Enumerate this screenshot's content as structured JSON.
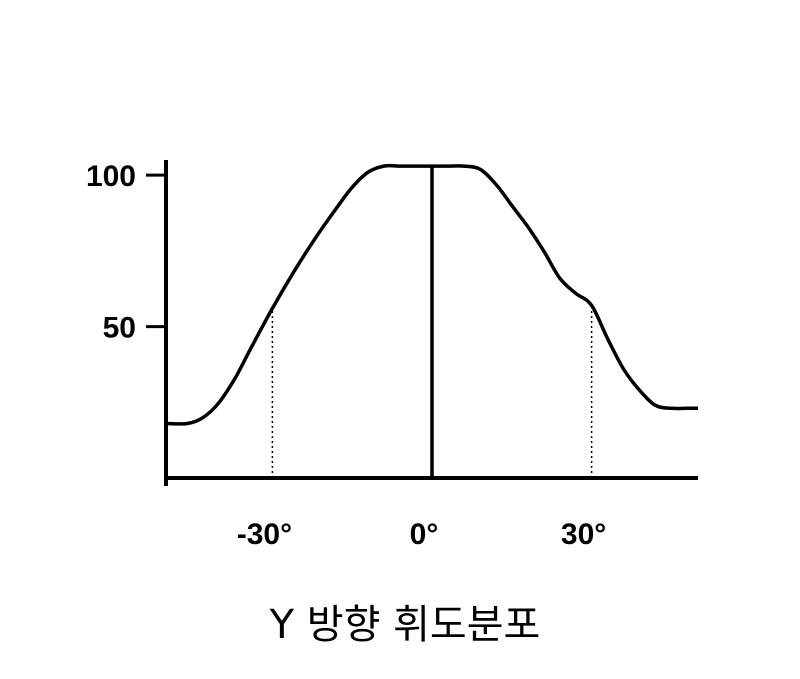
{
  "chart_data": {
    "type": "line",
    "title": "",
    "caption": "Y 방향 휘도분포",
    "xlabel": "",
    "ylabel": "",
    "xlim": [
      -50,
      50
    ],
    "ylim": [
      0,
      105
    ],
    "y_ticks": [
      {
        "value": 100,
        "label": "100"
      },
      {
        "value": 50,
        "label": "50"
      }
    ],
    "x_ticks": [
      {
        "value": -30,
        "label": "-30°"
      },
      {
        "value": 0,
        "label": "0°"
      },
      {
        "value": 30,
        "label": "30°"
      }
    ],
    "reference_lines": [
      {
        "x": -30,
        "y": 56,
        "style": "dotted"
      },
      {
        "x": 0,
        "y": 103,
        "style": "solid"
      },
      {
        "x": 30,
        "y": 56,
        "style": "dotted"
      }
    ],
    "series": [
      {
        "x": [
          -50,
          -46,
          -43,
          -40,
          -37,
          -34,
          -30,
          -26,
          -22,
          -18,
          -15,
          -12,
          -9,
          -6,
          -3,
          0,
          3,
          6,
          9,
          12,
          15,
          18,
          21,
          24,
          27,
          30,
          33,
          36,
          39,
          42,
          45,
          48,
          50
        ],
        "values": [
          18,
          18,
          20,
          25,
          33,
          43,
          56,
          68,
          79,
          89,
          96,
          101,
          103,
          103,
          103,
          103,
          103,
          103,
          102,
          97,
          90,
          83,
          75,
          66,
          61,
          57,
          46,
          36,
          29,
          24,
          23,
          23,
          23
        ]
      }
    ],
    "grid": false,
    "legend": "none"
  }
}
